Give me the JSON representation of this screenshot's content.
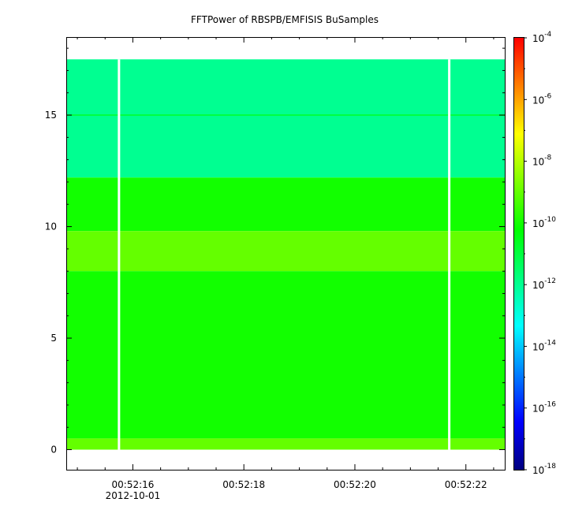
{
  "chart_data": {
    "type": "heatmap",
    "title": "FFTPower of RBSPB/EMFISIS  BuSamples",
    "xlabel": "",
    "ylabel": "",
    "x_tick_labels": [
      "00:52:16",
      "00:52:18",
      "00:52:20",
      "00:52:22"
    ],
    "x_date_label": "2012-10-01",
    "xlim": [
      "00:52:14.8",
      "00:52:22.7"
    ],
    "ylim": [
      -0.9,
      18.5
    ],
    "y_ticks": [
      0,
      5,
      10,
      15
    ],
    "colorbar": {
      "scale": "log",
      "range": [
        1e-18,
        0.0001
      ],
      "tick_labels": [
        {
          "base": "10",
          "exp": "-4"
        },
        {
          "base": "10",
          "exp": "-6"
        },
        {
          "base": "10",
          "exp": "-8"
        },
        {
          "base": "10",
          "exp": "-10"
        },
        {
          "base": "10",
          "exp": "-12"
        },
        {
          "base": "10",
          "exp": "-14"
        },
        {
          "base": "10",
          "exp": "-16"
        },
        {
          "base": "10",
          "exp": "-18"
        }
      ],
      "colors": [
        "#00007f",
        "#0000ff",
        "#007fff",
        "#00ffff",
        "#00ff7f",
        "#00ff00",
        "#7fff00",
        "#ffff00",
        "#ff7f00",
        "#ff0000"
      ]
    },
    "data_gaps_time": [
      "00:52:15.75",
      "00:52:21.7"
    ],
    "frequency_top": 17.5,
    "bands": [
      {
        "freq_range": [
          12.2,
          17.5
        ],
        "power": 1e-12
      },
      {
        "freq_range": [
          9.8,
          12.2
        ],
        "power": 1e-10
      },
      {
        "freq_range": [
          8.0,
          9.8
        ],
        "power": 1e-09
      },
      {
        "freq_range": [
          0.5,
          8.0
        ],
        "power": 1e-10
      },
      {
        "freq_range": [
          0.0,
          0.5
        ],
        "power": 1e-09
      }
    ],
    "line_15": {
      "freq": 15.0,
      "power": 1e-11
    }
  }
}
